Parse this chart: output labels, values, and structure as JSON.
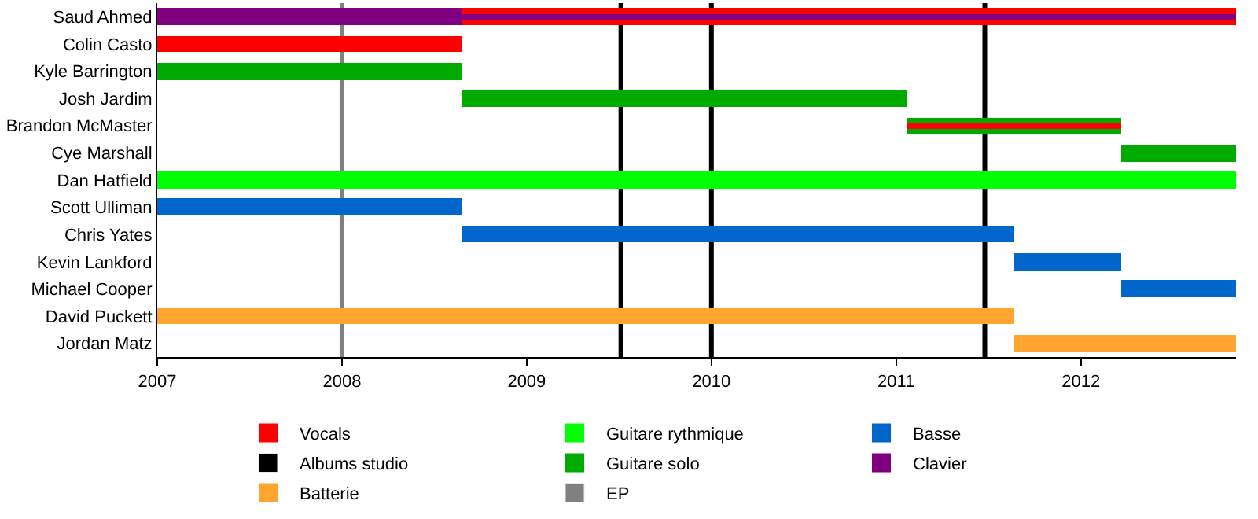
{
  "chart_data": {
    "type": "bar",
    "orientation": "horizontal",
    "legend": "bottom",
    "grid": false,
    "categories": [
      "Saud Ahmed",
      "Colin Casto",
      "Kyle Barrington",
      "Josh Jardim",
      "Brandon McMaster",
      "Cye Marshall",
      "Dan Hatfield",
      "Scott Ulliman",
      "Chris Yates",
      "Kevin Lankford",
      "Michael Cooper",
      "David Puckett",
      "Jordan Matz"
    ],
    "xlim": [
      2007,
      2012.84
    ],
    "xticks": [
      2007,
      2008,
      2009,
      2010,
      2011,
      2012
    ],
    "series": [
      {
        "name": "Vocals",
        "color": "#ff0000",
        "base": [
          2008.65,
          2007,
          null,
          null,
          null,
          null,
          null,
          null,
          null,
          null,
          null,
          null,
          null
        ],
        "values": [
          4.19,
          1.65,
          null,
          null,
          null,
          null,
          null,
          null,
          null,
          null,
          null,
          null,
          null
        ]
      },
      {
        "name": "Guitare solo",
        "color": "#00aa00",
        "base": [
          null,
          null,
          2007,
          2008.65,
          2011.06,
          2012.22,
          null,
          null,
          null,
          null,
          null,
          null,
          null
        ],
        "values": [
          null,
          null,
          1.65,
          2.41,
          1.16,
          0.62,
          null,
          null,
          null,
          null,
          null,
          null,
          null
        ]
      },
      {
        "name": "Guitare rythmique",
        "color": "#00ff00",
        "base": [
          null,
          null,
          null,
          null,
          null,
          null,
          2007,
          null,
          null,
          null,
          null,
          null,
          null
        ],
        "values": [
          null,
          null,
          null,
          null,
          null,
          null,
          5.84,
          null,
          null,
          null,
          null,
          null,
          null
        ]
      },
      {
        "name": "Clavier",
        "color": "#800080",
        "base": [
          2007,
          null,
          null,
          null,
          null,
          null,
          null,
          null,
          null,
          null,
          null,
          null,
          null
        ],
        "values": [
          1.65,
          null,
          null,
          null,
          null,
          null,
          null,
          null,
          null,
          null,
          null,
          null,
          null
        ]
      },
      {
        "name": "Basse",
        "color": "#0066cc",
        "base": [
          null,
          null,
          null,
          null,
          null,
          null,
          null,
          2007,
          2008.65,
          2011.64,
          2012.22,
          null,
          null
        ],
        "values": [
          null,
          null,
          null,
          null,
          null,
          null,
          null,
          1.65,
          2.99,
          0.58,
          0.62,
          null,
          null
        ]
      },
      {
        "name": "Batterie",
        "color": "#ffa530",
        "base": [
          null,
          null,
          null,
          null,
          null,
          null,
          null,
          null,
          null,
          null,
          null,
          2007,
          2011.64
        ],
        "values": [
          null,
          null,
          null,
          null,
          null,
          null,
          null,
          null,
          null,
          null,
          null,
          4.64,
          1.2
        ]
      },
      {
        "color": "#800080",
        "base": [
          2008.65,
          null,
          null,
          null,
          null,
          null,
          null,
          null,
          null,
          null,
          null,
          null,
          null
        ],
        "values": [
          4.19,
          null,
          null,
          null,
          null,
          null,
          null,
          null,
          null,
          null,
          null,
          null,
          null
        ]
      },
      {
        "color": "#ff0000",
        "base": [
          null,
          null,
          null,
          null,
          2011.06,
          null,
          null,
          null,
          null,
          null,
          null,
          null,
          null
        ],
        "values": [
          null,
          null,
          null,
          null,
          1.16,
          null,
          null,
          null,
          null,
          null,
          null,
          null,
          null
        ]
      }
    ],
    "ref_lines": [
      {
        "axis": "x",
        "value": 2009.51,
        "label": "Albums studio",
        "color": "#000000"
      },
      {
        "axis": "x",
        "value": 2010.0,
        "color": "#000000"
      },
      {
        "axis": "x",
        "value": 2011.48,
        "color": "#000000"
      },
      {
        "axis": "x",
        "value": 2008.0,
        "label": "EP",
        "color": "#808080"
      }
    ]
  }
}
